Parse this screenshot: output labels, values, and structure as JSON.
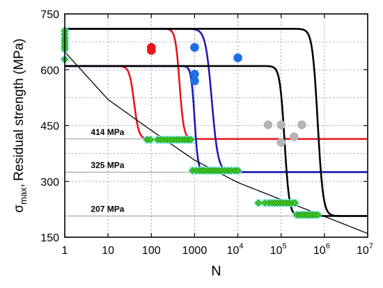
{
  "chart_data": {
    "type": "scatter",
    "title": "",
    "xlabel": "N",
    "ylabel_main": "Residual strength (MPa)",
    "ylabel_sigma": "σ",
    "ylabel_sub": "max",
    "ylabel_comma": ",",
    "x_scale": "log",
    "xlim": [
      1,
      10000000
    ],
    "ylim": [
      150,
      750
    ],
    "grid": true,
    "grid_style": "dotted",
    "y_ticks": [
      {
        "value": 150,
        "label": "150"
      },
      {
        "value": 300,
        "label": "300"
      },
      {
        "value": 450,
        "label": "450"
      },
      {
        "value": 600,
        "label": "600"
      },
      {
        "value": 750,
        "label": "750"
      }
    ],
    "x_ticks": [
      {
        "value": 1,
        "base": "1",
        "exp": ""
      },
      {
        "value": 10,
        "base": "10",
        "exp": ""
      },
      {
        "value": 100,
        "base": "100",
        "exp": ""
      },
      {
        "value": 1000,
        "base": "1000",
        "exp": ""
      },
      {
        "value": 10000,
        "base": "10",
        "exp": "4"
      },
      {
        "value": 100000,
        "base": "10",
        "exp": "5"
      },
      {
        "value": 1000000,
        "base": "10",
        "exp": "6"
      },
      {
        "value": 10000000,
        "base": "10",
        "exp": "7"
      }
    ],
    "stress_levels": [
      {
        "value": 414,
        "label": "414 MPa",
        "label_x": 4.0
      },
      {
        "value": 325,
        "label": "325 MPa",
        "label_x": 4.0
      },
      {
        "value": 207,
        "label": "207 MPa",
        "label_x": 4.0
      }
    ],
    "colors": {
      "red": "#e8141c",
      "blue": "#1c1ab8",
      "black": "#000000",
      "green": "#3ec81e",
      "green_edge": "#1e7a10",
      "cyan_glow": "#7ff0e6",
      "gray": "#b4b4b4",
      "blue_point": "#1e6ee6",
      "red_point": "#e8141c"
    },
    "curves": [
      {
        "color": "red",
        "upper": 710,
        "lower": 414,
        "n_mid": 450,
        "k": 9
      },
      {
        "color": "red",
        "upper": 610,
        "lower": 414,
        "n_mid": 40,
        "k": 8
      },
      {
        "color": "blue",
        "upper": 710,
        "lower": 325,
        "n_mid": 2500,
        "k": 6
      },
      {
        "color": "blue",
        "upper": 610,
        "lower": 325,
        "n_mid": 1000,
        "k": 11
      },
      {
        "color": "black",
        "upper": 710,
        "lower": 207,
        "n_mid": 700000,
        "k": 7
      },
      {
        "color": "black",
        "upper": 610,
        "lower": 207,
        "n_mid": 120000,
        "k": 8
      }
    ],
    "decay_curve": {
      "color": "black",
      "points": [
        [
          1,
          648
        ],
        [
          10,
          520
        ],
        [
          100,
          437
        ],
        [
          1000,
          357
        ],
        [
          10000,
          297
        ],
        [
          100000,
          251
        ],
        [
          1000000,
          206
        ],
        [
          10000000,
          160
        ]
      ]
    },
    "red_points": [
      [
        100,
        660
      ],
      [
        100,
        652
      ]
    ],
    "blue_points": [
      [
        1000,
        660
      ],
      [
        1000,
        588
      ],
      [
        1000,
        570
      ],
      [
        10000,
        632
      ]
    ],
    "gray_points": [
      [
        50000,
        452
      ],
      [
        100000,
        452
      ],
      [
        300000,
        452
      ],
      [
        100000,
        405
      ],
      [
        200000,
        420
      ]
    ],
    "green_points": {
      "n1": [
        [
          1,
          705
        ],
        [
          1,
          695
        ],
        [
          1,
          685
        ],
        [
          1,
          678
        ],
        [
          1,
          670
        ],
        [
          1,
          662
        ],
        [
          1,
          655
        ],
        [
          1,
          628
        ]
      ],
      "s414": [
        [
          80,
          412
        ],
        [
          95,
          412
        ],
        [
          140,
          412
        ],
        [
          165,
          412
        ],
        [
          195,
          412
        ],
        [
          230,
          412
        ],
        [
          270,
          412
        ],
        [
          320,
          412
        ],
        [
          380,
          412
        ],
        [
          440,
          412
        ],
        [
          520,
          412
        ],
        [
          600,
          412
        ],
        [
          700,
          412
        ],
        [
          820,
          412
        ]
      ],
      "s325": [
        [
          900,
          329
        ],
        [
          1100,
          329
        ],
        [
          1300,
          329
        ],
        [
          1500,
          329
        ],
        [
          1700,
          329
        ],
        [
          2000,
          329
        ],
        [
          2300,
          329
        ],
        [
          2700,
          329
        ],
        [
          3100,
          329
        ],
        [
          3600,
          329
        ],
        [
          4200,
          329
        ],
        [
          5000,
          329
        ],
        [
          6000,
          329
        ],
        [
          7000,
          329
        ],
        [
          8500,
          329
        ],
        [
          10000,
          329
        ]
      ],
      "s240": [
        [
          30000,
          242
        ],
        [
          42000,
          242
        ],
        [
          52000,
          242
        ],
        [
          62000,
          242
        ],
        [
          72000,
          242
        ],
        [
          82000,
          242
        ],
        [
          95000,
          242
        ],
        [
          110000,
          242
        ],
        [
          130000,
          242
        ],
        [
          150000,
          242
        ],
        [
          180000,
          242
        ],
        [
          210000,
          242
        ]
      ],
      "s207": [
        [
          230000,
          210
        ],
        [
          270000,
          210
        ],
        [
          310000,
          210
        ],
        [
          350000,
          210
        ],
        [
          400000,
          210
        ],
        [
          450000,
          210
        ],
        [
          520000,
          210
        ],
        [
          600000,
          210
        ],
        [
          700000,
          210
        ]
      ]
    }
  }
}
